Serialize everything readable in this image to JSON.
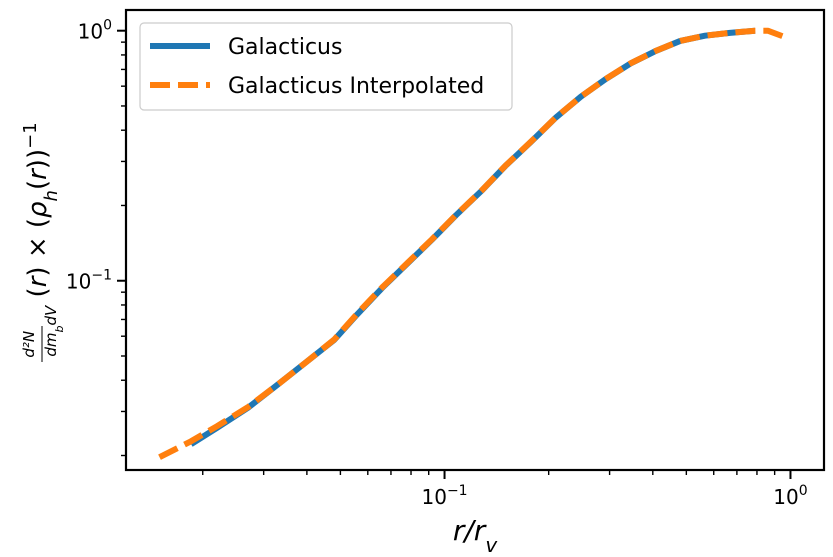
{
  "chart_data": {
    "type": "line",
    "xscale": "log",
    "yscale": "log",
    "xlim": [
      0.012,
      1.25
    ],
    "ylim": [
      0.0175,
      1.21
    ],
    "grid": false,
    "legend_position": "top-left",
    "xlabel": "r/r_v",
    "ylabel": "d²N/(dm_b dV) (r) × (ρ_h(r))^−1",
    "x_ticks": [
      {
        "value": 0.1,
        "label": "10^−1"
      },
      {
        "value": 1.0,
        "label": "10^0"
      }
    ],
    "y_ticks": [
      {
        "value": 0.1,
        "label": "10^−1"
      },
      {
        "value": 1.0,
        "label": "10^0"
      }
    ],
    "series": [
      {
        "name": "Galacticus",
        "color": "#1f77b4",
        "style": "solid",
        "x": [
          0.0185,
          0.022,
          0.027,
          0.033,
          0.04,
          0.048,
          0.056,
          0.066,
          0.078,
          0.092,
          0.108,
          0.128,
          0.15,
          0.178,
          0.21,
          0.248,
          0.292,
          0.345,
          0.408,
          0.48,
          0.566,
          0.668,
          0.79
        ],
        "y": [
          0.0222,
          0.0258,
          0.031,
          0.0385,
          0.0475,
          0.058,
          0.0735,
          0.0935,
          0.117,
          0.146,
          0.183,
          0.229,
          0.288,
          0.36,
          0.45,
          0.545,
          0.64,
          0.74,
          0.83,
          0.91,
          0.955,
          0.98,
          1.0
        ]
      },
      {
        "name": "Galacticus Interpolated",
        "color": "#ff7f0e",
        "style": "dashed",
        "x": [
          0.015,
          0.0185,
          0.022,
          0.027,
          0.033,
          0.04,
          0.048,
          0.056,
          0.066,
          0.078,
          0.092,
          0.108,
          0.128,
          0.15,
          0.178,
          0.21,
          0.248,
          0.292,
          0.345,
          0.408,
          0.48,
          0.566,
          0.668,
          0.79,
          0.86,
          0.95
        ],
        "y": [
          0.0197,
          0.0228,
          0.0262,
          0.0312,
          0.0385,
          0.0475,
          0.0582,
          0.074,
          0.094,
          0.1175,
          0.1465,
          0.1835,
          0.2295,
          0.2885,
          0.3605,
          0.4505,
          0.5455,
          0.6405,
          0.7405,
          0.8305,
          0.9105,
          0.9555,
          0.9805,
          1.0,
          1.0,
          0.95
        ]
      }
    ]
  }
}
